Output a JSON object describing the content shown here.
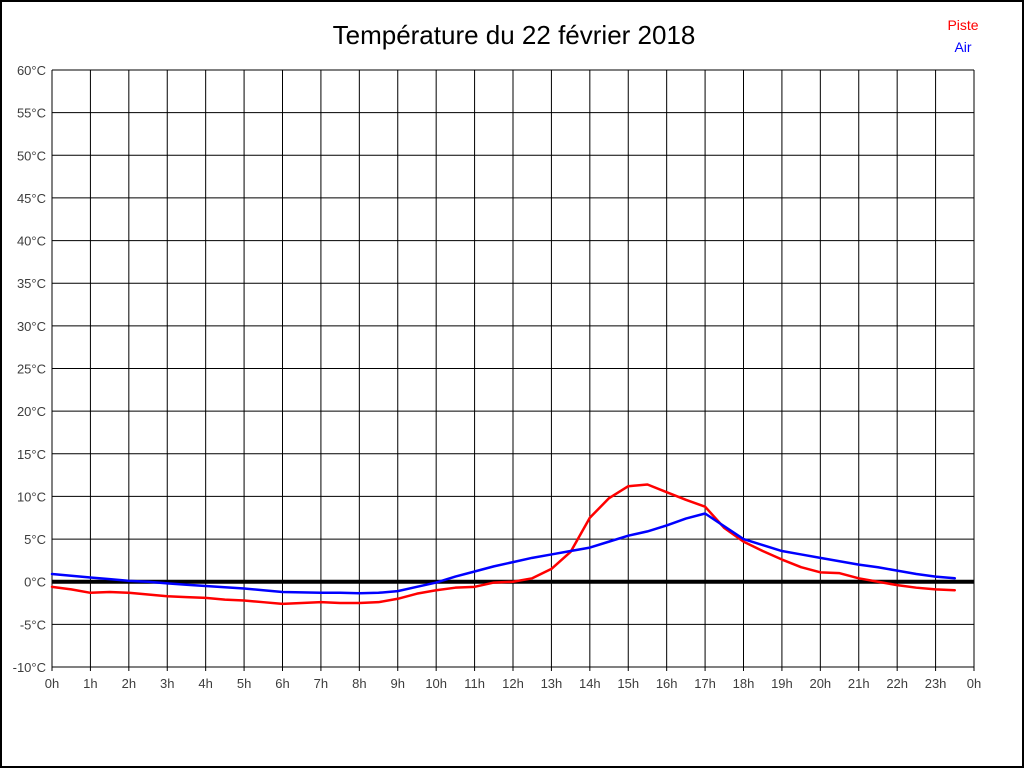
{
  "window": {
    "background": "#ffffff",
    "border_color": "#000000"
  },
  "chart_data": {
    "type": "line",
    "title": "Température du 22 février 2018",
    "xlabel": "",
    "ylabel": "",
    "xlim": [
      0,
      24
    ],
    "ylim": [
      -10,
      60
    ],
    "ytick_step": 5,
    "grid": true,
    "grid_color": "#000000",
    "zero_line": {
      "value": 0,
      "color": "#000000",
      "width": 4
    },
    "legend_position": "top-right",
    "xtick_labels": [
      "0h",
      "1h",
      "2h",
      "3h",
      "4h",
      "5h",
      "6h",
      "7h",
      "8h",
      "9h",
      "10h",
      "11h",
      "12h",
      "13h",
      "14h",
      "15h",
      "16h",
      "17h",
      "18h",
      "19h",
      "20h",
      "21h",
      "22h",
      "23h",
      "0h"
    ],
    "ytick_labels": [
      "-10°C",
      "-5°C",
      "0°C",
      "5°C",
      "10°C",
      "15°C",
      "20°C",
      "25°C",
      "30°C",
      "35°C",
      "40°C",
      "45°C",
      "50°C",
      "55°C",
      "60°C"
    ],
    "series": [
      {
        "name": "Piste",
        "color": "#ff0000",
        "x_start": 0,
        "x_step": 0.5,
        "values": [
          -0.6,
          -0.9,
          -1.3,
          -1.2,
          -1.3,
          -1.5,
          -1.7,
          -1.8,
          -1.9,
          -2.1,
          -2.2,
          -2.4,
          -2.6,
          -2.5,
          -2.4,
          -2.5,
          -2.5,
          -2.4,
          -2.0,
          -1.4,
          -1.0,
          -0.7,
          -0.6,
          -0.1,
          0.0,
          0.4,
          1.5,
          3.5,
          7.5,
          9.8,
          11.2,
          11.4,
          10.5,
          9.6,
          8.8,
          6.3,
          4.7,
          3.6,
          2.6,
          1.7,
          1.1,
          1.0,
          0.4,
          0.0,
          -0.4,
          -0.7,
          -0.9,
          -1.0
        ]
      },
      {
        "name": "Air",
        "color": "#0000ff",
        "x_start": 0,
        "x_step": 0.5,
        "values": [
          0.9,
          0.7,
          0.5,
          0.3,
          0.1,
          0.0,
          -0.2,
          -0.35,
          -0.5,
          -0.65,
          -0.8,
          -1.0,
          -1.2,
          -1.25,
          -1.3,
          -1.3,
          -1.35,
          -1.3,
          -1.1,
          -0.6,
          -0.1,
          0.6,
          1.2,
          1.8,
          2.3,
          2.8,
          3.2,
          3.6,
          4.0,
          4.7,
          5.4,
          5.9,
          6.6,
          7.4,
          8.0,
          6.5,
          5.0,
          4.3,
          3.6,
          3.2,
          2.8,
          2.4,
          2.0,
          1.7,
          1.3,
          0.9,
          0.6,
          0.4
        ]
      }
    ]
  }
}
